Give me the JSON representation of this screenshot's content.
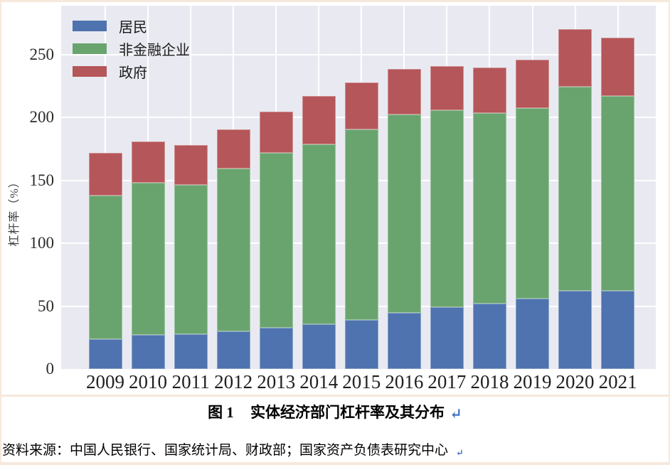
{
  "page": {
    "border_color": "#f7e8db",
    "mark_color": "#4472c4"
  },
  "figure": {
    "caption_label": "图 1",
    "caption_title": "实体经济部门杠杆率及其分布",
    "caption_mark": "↵",
    "source_text": "资料来源：中国人民银行、国家统计局、财政部；国家资产负债表研究中心",
    "source_mark": "↵"
  },
  "chart_data": {
    "type": "bar",
    "stacked": true,
    "title": "",
    "xlabel": "",
    "ylabel": "杠杆率（%）",
    "categories": [
      "2009",
      "2010",
      "2011",
      "2012",
      "2013",
      "2014",
      "2015",
      "2016",
      "2017",
      "2018",
      "2019",
      "2020",
      "2021"
    ],
    "series": [
      {
        "name": "居民",
        "color": "#4e73ae",
        "values": [
          23.9,
          27.3,
          27.8,
          29.7,
          33.0,
          35.9,
          39.2,
          44.8,
          49.0,
          52.1,
          55.8,
          62.2,
          62.2
        ]
      },
      {
        "name": "非金融企业",
        "color": "#69a46e",
        "values": [
          113.9,
          121.0,
          118.7,
          129.9,
          138.7,
          142.6,
          151.5,
          157.5,
          156.7,
          151.6,
          151.9,
          162.3,
          154.8
        ]
      },
      {
        "name": "政府",
        "color": "#b5565a",
        "values": [
          34.4,
          32.6,
          31.9,
          30.9,
          33.0,
          38.9,
          37.0,
          36.6,
          35.5,
          35.9,
          38.6,
          45.6,
          46.8
        ]
      }
    ],
    "totals": [
      172.2,
      180.9,
      178.4,
      190.5,
      204.7,
      217.4,
      227.7,
      238.9,
      241.2,
      239.6,
      246.3,
      270.1,
      263.8
    ],
    "yticks": [
      0,
      50,
      100,
      150,
      200,
      250
    ],
    "ylim": [
      0,
      289
    ],
    "grid": true,
    "grid_color": "#ffffff",
    "plot_background": "#e9eaf1",
    "legend_position": "upper-left"
  }
}
